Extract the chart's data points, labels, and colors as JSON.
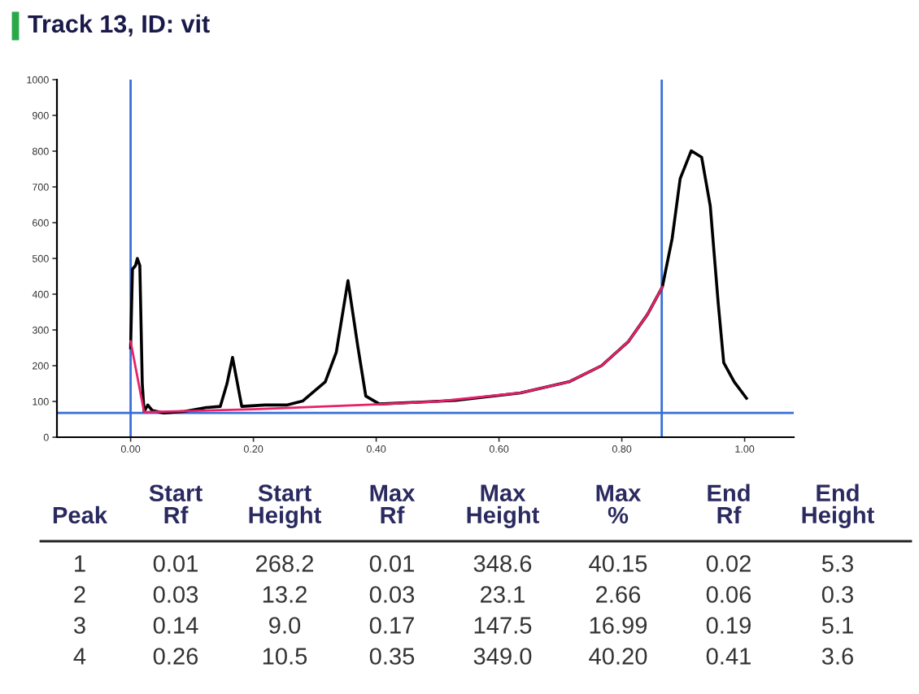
{
  "chart_data": {
    "type": "line",
    "title": "Track 13, ID: vit",
    "series": [
      {
        "color": "#000000",
        "x": [
          0.0,
          0.003,
          0.008,
          0.011,
          0.015,
          0.019,
          0.022,
          0.028,
          0.035,
          0.053,
          0.088,
          0.123,
          0.146,
          0.157,
          0.166,
          0.174,
          0.181,
          0.219,
          0.254,
          0.28,
          0.317,
          0.335,
          0.354,
          0.37,
          0.383,
          0.405,
          0.458,
          0.529,
          0.635,
          0.714,
          0.767,
          0.811,
          0.842,
          0.866,
          0.882,
          0.895,
          0.913,
          0.93,
          0.944,
          0.957,
          0.966,
          0.983,
          1.003
        ],
        "values": [
          250,
          470,
          480,
          500,
          480,
          150,
          72,
          90,
          75,
          68,
          72,
          83,
          86,
          150,
          223,
          150,
          86,
          90,
          90,
          101,
          155,
          238,
          438,
          254,
          115,
          93,
          97,
          103,
          124,
          155,
          200,
          268,
          344,
          420,
          556,
          723,
          801,
          783,
          647,
          374,
          208,
          155,
          109
        ]
      },
      {
        "color": "#e8206a",
        "x": [
          0.0,
          0.022,
          0.2,
          0.4,
          0.5,
          0.635,
          0.714,
          0.767,
          0.811,
          0.842,
          0.866
        ],
        "values": [
          268,
          70,
          78,
          92,
          100,
          124,
          155,
          200,
          268,
          344,
          420
        ]
      }
    ],
    "xlim": [
      -0.12,
      1.08
    ],
    "ylim": [
      0,
      1000
    ],
    "xticks": [
      {
        "value": 0,
        "label": "0.00"
      },
      {
        "value": 0.2,
        "label": "0.20"
      },
      {
        "value": 0.4,
        "label": "0.40"
      },
      {
        "value": 0.6,
        "label": "0.60"
      },
      {
        "value": 0.8,
        "label": "0.80"
      },
      {
        "value": 1.0,
        "label": "1.00"
      }
    ],
    "yticks": [
      0,
      100,
      200,
      300,
      400,
      500,
      600,
      700,
      800,
      900,
      1000
    ],
    "ref_lines": [
      {
        "axis": "x",
        "value": 0,
        "color": "#3a6fd8"
      },
      {
        "axis": "x",
        "value": 0.865,
        "color": "#3a6fd8"
      },
      {
        "axis": "y",
        "value": 68,
        "color": "#3a6fd8"
      }
    ],
    "grid": false,
    "legend": false,
    "marker": "none",
    "line_style": "solid",
    "annotations": [
      "Peak",
      "Start\nRf",
      "Start\nHeight",
      "Max\nRf",
      "Max\nHeight",
      "Max\n%",
      "End\nRf",
      "End\nHeight",
      "1",
      "0.01",
      "268.2",
      "0.01",
      "348.6",
      "40.15",
      "0.02",
      "5.3",
      "2",
      "0.03",
      "13.2",
      "0.03",
      "23.1",
      "2.66",
      "0.06",
      "0.3",
      "3",
      "0.14",
      "9.0",
      "0.17",
      "147.5",
      "16.99",
      "0.19",
      "5.1",
      "4",
      "0.26",
      "10.5",
      "0.35",
      "349.0",
      "40.20",
      "0.41",
      "3.6"
    ]
  }
}
